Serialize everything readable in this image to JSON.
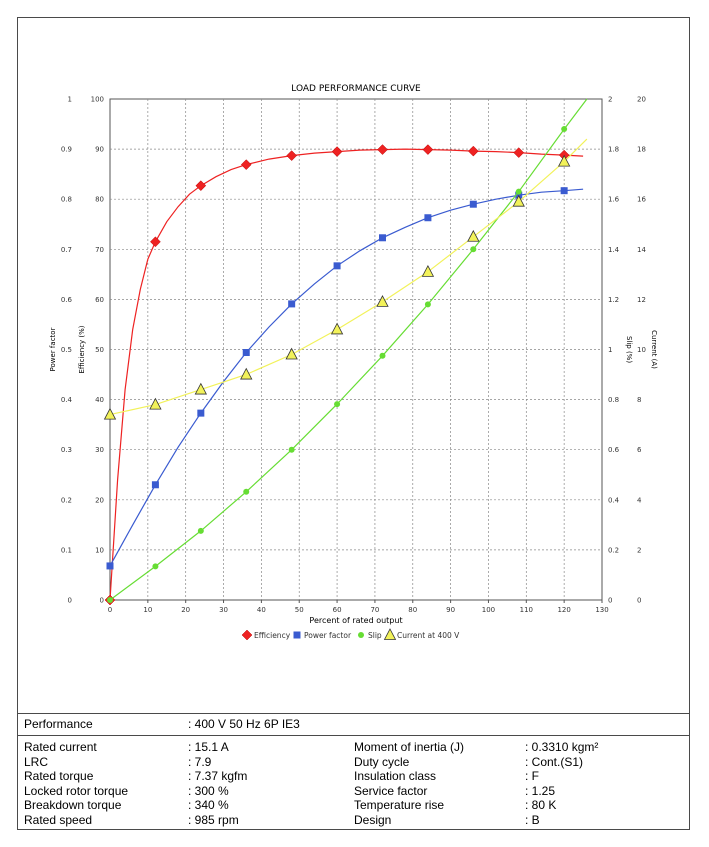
{
  "chart_data": {
    "type": "line",
    "title": "LOAD PERFORMANCE CURVE",
    "xlabel": "Percent of rated output",
    "xlim": [
      0,
      130
    ],
    "x_ticks": [
      "0",
      "10",
      "20",
      "30",
      "40",
      "50",
      "60",
      "70",
      "80",
      "90",
      "100",
      "110",
      "120",
      "130"
    ],
    "grid": true,
    "legend_position": "bottom",
    "axes": {
      "power_factor": {
        "label": "Power factor",
        "ticks": [
          "0",
          "0.1",
          "0.2",
          "0.3",
          "0.4",
          "0.5",
          "0.6",
          "0.7",
          "0.8",
          "0.9",
          "1"
        ],
        "range": [
          0,
          1
        ]
      },
      "efficiency": {
        "label": "Efficiency (%)",
        "ticks": [
          "0",
          "10",
          "20",
          "30",
          "40",
          "50",
          "60",
          "70",
          "80",
          "90",
          "100"
        ],
        "range": [
          0,
          100
        ]
      },
      "slip": {
        "label": "Slip (%)",
        "ticks": [
          "0",
          "0.2",
          "0.4",
          "0.6",
          "0.8",
          "1",
          "1.2",
          "1.4",
          "1.6",
          "1.8",
          "2"
        ],
        "range": [
          0,
          2
        ]
      },
      "current": {
        "label": "Current (A)",
        "ticks": [
          "0",
          "2",
          "4",
          "6",
          "8",
          "10",
          "12",
          "14",
          "16",
          "18",
          "20"
        ],
        "range": [
          0,
          20
        ]
      }
    },
    "series": [
      {
        "name": "Efficiency",
        "axis": "efficiency",
        "color": "#ee2222",
        "marker": "diamond",
        "x": [
          0,
          12,
          24,
          36,
          48,
          60,
          72,
          84,
          96,
          108,
          120
        ],
        "y": [
          0,
          71.5,
          82.7,
          86.9,
          88.7,
          89.5,
          89.9,
          89.9,
          89.6,
          89.3,
          88.8
        ],
        "curve_x": [
          0,
          2,
          4,
          6,
          8,
          10,
          12,
          15,
          18,
          21,
          24,
          28,
          32,
          36,
          42,
          48,
          54,
          60,
          66,
          72,
          78,
          84,
          90,
          96,
          102,
          108,
          114,
          120,
          125
        ],
        "curve_y": [
          0,
          24,
          42,
          54,
          62,
          68,
          71.5,
          75.5,
          78.5,
          81,
          82.7,
          84.5,
          85.9,
          86.9,
          88,
          88.7,
          89.2,
          89.5,
          89.8,
          89.9,
          90,
          89.9,
          89.8,
          89.6,
          89.5,
          89.3,
          89,
          88.8,
          88.6
        ]
      },
      {
        "name": "Power factor",
        "axis": "power_factor",
        "color": "#3a5bd0",
        "marker": "square",
        "x": [
          0,
          12,
          24,
          36,
          48,
          60,
          72,
          84,
          96,
          108,
          120
        ],
        "y": [
          0.068,
          0.23,
          0.373,
          0.494,
          0.591,
          0.667,
          0.723,
          0.763,
          0.79,
          0.808,
          0.817
        ],
        "curve_x": [
          0,
          6,
          12,
          18,
          24,
          30,
          36,
          42,
          48,
          54,
          60,
          66,
          72,
          78,
          84,
          90,
          96,
          102,
          108,
          114,
          120,
          125
        ],
        "curve_y": [
          0.068,
          0.15,
          0.23,
          0.305,
          0.373,
          0.436,
          0.494,
          0.545,
          0.591,
          0.631,
          0.667,
          0.697,
          0.723,
          0.744,
          0.763,
          0.778,
          0.79,
          0.8,
          0.808,
          0.814,
          0.817,
          0.82
        ]
      },
      {
        "name": "Slip",
        "axis": "slip",
        "color": "#66dd33",
        "marker": "circle",
        "x": [
          0,
          12,
          24,
          36,
          48,
          60,
          72,
          84,
          96,
          108,
          120
        ],
        "y": [
          0,
          0.134,
          0.276,
          0.432,
          0.6,
          0.782,
          0.975,
          1.18,
          1.4,
          1.63,
          1.88
        ],
        "curve_x": [
          0,
          12,
          24,
          36,
          48,
          60,
          72,
          84,
          96,
          108,
          120,
          126
        ],
        "curve_y": [
          0,
          0.134,
          0.276,
          0.432,
          0.6,
          0.782,
          0.975,
          1.18,
          1.4,
          1.63,
          1.88,
          2.0
        ]
      },
      {
        "name": "Current at 400 V",
        "axis": "current",
        "color": "#f2f25a",
        "marker": "triangle",
        "x": [
          0,
          12,
          24,
          36,
          48,
          60,
          72,
          84,
          96,
          108,
          120
        ],
        "y": [
          7.4,
          7.8,
          8.4,
          9.0,
          9.8,
          10.8,
          11.9,
          13.1,
          14.5,
          15.9,
          17.5
        ],
        "curve_x": [
          0,
          12,
          24,
          36,
          48,
          60,
          72,
          84,
          96,
          108,
          120,
          126
        ],
        "curve_y": [
          7.4,
          7.8,
          8.4,
          9.0,
          9.8,
          10.8,
          11.9,
          13.1,
          14.5,
          15.9,
          17.5,
          18.4
        ]
      }
    ]
  },
  "info": {
    "performance_label": "Performance",
    "performance_value": ": 400 V 50 Hz 6P IE3",
    "left": [
      {
        "label": "Rated current",
        "value": ": 15.1 A"
      },
      {
        "label": "LRC",
        "value": ": 7.9"
      },
      {
        "label": "Rated torque",
        "value": ": 7.37 kgfm"
      },
      {
        "label": "Locked rotor torque",
        "value": ": 300 %"
      },
      {
        "label": "Breakdown torque",
        "value": ": 340 %"
      },
      {
        "label": "Rated speed",
        "value": ": 985 rpm"
      }
    ],
    "right": [
      {
        "label": "Moment of inertia (J)",
        "value": ": 0.3310 kgm²"
      },
      {
        "label": "Duty cycle",
        "value": ": Cont.(S1)"
      },
      {
        "label": "Insulation class",
        "value": ": F"
      },
      {
        "label": "Service factor",
        "value": ": 1.25"
      },
      {
        "label": "Temperature rise",
        "value": ": 80 K"
      },
      {
        "label": "Design",
        "value": ": B"
      }
    ]
  }
}
